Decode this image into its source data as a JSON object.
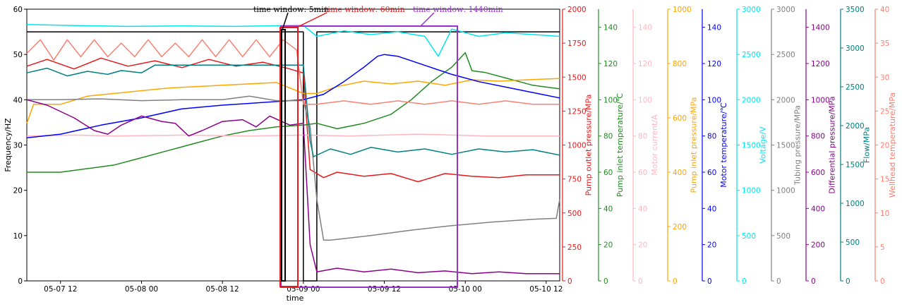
{
  "chart_data": {
    "type": "line",
    "xlabel": "time",
    "x_ticks": [
      "05-07 12",
      "05-08 00",
      "05-08 12",
      "05-09 00",
      "05-09 12",
      "05-10 00",
      "05-10 12"
    ],
    "x_range": [
      "05-07 07:00",
      "05-10 14:00"
    ],
    "frequency_axis": {
      "label": "Frequency/HZ",
      "range": [
        0,
        60
      ],
      "ticks": [
        0,
        10,
        20,
        30,
        40,
        50,
        60
      ]
    },
    "right_axes": [
      {
        "key": "pump_outlet",
        "label": "Pump outlet pressure/MPa",
        "color": "#e41a1c",
        "range": [
          0,
          2000
        ],
        "ticks": [
          0,
          250,
          500,
          750,
          1000,
          1250,
          1500,
          1750,
          2000
        ]
      },
      {
        "key": "pump_inlet_temp",
        "label": "Pump inlet temperature/℃",
        "color": "#228b22",
        "range": [
          0,
          150
        ],
        "ticks": [
          0,
          20,
          40,
          60,
          80,
          100,
          120,
          140
        ]
      },
      {
        "key": "motor_current",
        "label": "Motor current/A",
        "color": "#ffb6c1",
        "range": [
          0,
          150
        ],
        "ticks": [
          0,
          20,
          40,
          60,
          80,
          100,
          120,
          140
        ]
      },
      {
        "key": "pump_inlet_pressure",
        "label": "Pump inlet pressure/MPa",
        "color": "#ffa500",
        "range": [
          0,
          1000
        ],
        "ticks": [
          0,
          200,
          400,
          600,
          800,
          1000
        ]
      },
      {
        "key": "motor_temp",
        "label": "Motor temperature/℃",
        "color": "#0000ff",
        "range": [
          0,
          150
        ],
        "ticks": [
          0,
          20,
          40,
          60,
          80,
          100,
          120,
          140
        ]
      },
      {
        "key": "voltage",
        "label": "Voltage/V",
        "color": "#00e5ee",
        "range": [
          0,
          3000
        ],
        "ticks": [
          0,
          500,
          1000,
          1500,
          2000,
          2500,
          3000
        ]
      },
      {
        "key": "tubing_pressure",
        "label": "Tubing pressure/MPa",
        "color": "#808080",
        "range": [
          0,
          3000
        ],
        "ticks": [
          0,
          500,
          1000,
          1500,
          2000,
          2500,
          3000
        ]
      },
      {
        "key": "diff_pressure",
        "label": "Differential pressure/MPa",
        "color": "#8b008b",
        "range": [
          0,
          1500
        ],
        "ticks": [
          0,
          200,
          400,
          600,
          800,
          1000,
          1200,
          1400
        ]
      },
      {
        "key": "flow",
        "label": "Flow/MPa",
        "color": "#008080",
        "range": [
          0,
          3500
        ],
        "ticks": [
          0,
          500,
          1000,
          1500,
          2000,
          2500,
          3000,
          3500
        ]
      },
      {
        "key": "wellhead_temp",
        "label": "Wellhead temperature/MPa",
        "color": "#fa8072",
        "range": [
          0,
          40
        ],
        "ticks": [
          0,
          5,
          10,
          15,
          20,
          25,
          30,
          35,
          40
        ]
      }
    ],
    "windows": [
      {
        "label": "time window: 5min",
        "color": "#000000"
      },
      {
        "label": "time window: 60min",
        "color": "#e41a1c"
      },
      {
        "label": "time window: 1440min",
        "color": "#9932cc"
      }
    ],
    "series": [
      {
        "key": "frequency",
        "color": "#000000",
        "points": [
          [
            7,
            55
          ],
          [
            48,
            55
          ],
          [
            48,
            0
          ],
          [
            50,
            0
          ],
          [
            50,
            55
          ],
          [
            86,
            55
          ]
        ]
      },
      {
        "key": "pump_outlet",
        "color": "#e41a1c",
        "points": [
          [
            7,
            1580
          ],
          [
            10,
            1630
          ],
          [
            14,
            1560
          ],
          [
            18,
            1640
          ],
          [
            22,
            1580
          ],
          [
            26,
            1620
          ],
          [
            30,
            1570
          ],
          [
            34,
            1630
          ],
          [
            38,
            1580
          ],
          [
            42,
            1610
          ],
          [
            46,
            1560
          ],
          [
            48,
            1530
          ],
          [
            49,
            820
          ],
          [
            51,
            760
          ],
          [
            53,
            800
          ],
          [
            57,
            770
          ],
          [
            61,
            790
          ],
          [
            65,
            730
          ],
          [
            69,
            790
          ],
          [
            73,
            770
          ],
          [
            77,
            760
          ],
          [
            81,
            780
          ],
          [
            86,
            780
          ]
        ]
      },
      {
        "key": "pump_inlet_temp",
        "color": "#228b22",
        "points": [
          [
            7,
            60
          ],
          [
            12,
            60
          ],
          [
            16,
            62
          ],
          [
            20,
            64
          ],
          [
            24,
            68
          ],
          [
            28,
            72
          ],
          [
            32,
            76
          ],
          [
            36,
            80
          ],
          [
            40,
            83
          ],
          [
            44,
            85
          ],
          [
            48,
            86
          ],
          [
            50,
            87
          ],
          [
            53,
            84
          ],
          [
            57,
            87
          ],
          [
            61,
            92
          ],
          [
            64,
            100
          ],
          [
            67,
            110
          ],
          [
            70,
            118
          ],
          [
            72,
            126
          ],
          [
            73,
            116
          ],
          [
            75,
            115
          ],
          [
            78,
            112
          ],
          [
            82,
            108
          ],
          [
            86,
            106
          ]
        ]
      },
      {
        "key": "motor_current",
        "color": "#ffb6c1",
        "points": [
          [
            7,
            80
          ],
          [
            14,
            80.5
          ],
          [
            20,
            80
          ],
          [
            30,
            80.5
          ],
          [
            40,
            80
          ],
          [
            48,
            80.5
          ],
          [
            55,
            80
          ],
          [
            65,
            81
          ],
          [
            75,
            80
          ],
          [
            86,
            80
          ]
        ]
      },
      {
        "key": "pump_inlet_pressure",
        "color": "#ffa500",
        "points": [
          [
            7,
            580
          ],
          [
            8,
            650
          ],
          [
            12,
            650
          ],
          [
            16,
            680
          ],
          [
            20,
            690
          ],
          [
            24,
            700
          ],
          [
            28,
            710
          ],
          [
            32,
            715
          ],
          [
            36,
            720
          ],
          [
            40,
            725
          ],
          [
            44,
            730
          ],
          [
            47,
            700
          ],
          [
            48,
            690
          ],
          [
            50,
            690
          ],
          [
            53,
            715
          ],
          [
            57,
            735
          ],
          [
            61,
            725
          ],
          [
            65,
            735
          ],
          [
            69,
            720
          ],
          [
            73,
            740
          ],
          [
            77,
            735
          ],
          [
            81,
            740
          ],
          [
            86,
            745
          ]
        ]
      },
      {
        "key": "motor_temp",
        "color": "#0000ff",
        "points": [
          [
            7,
            79
          ],
          [
            12,
            81
          ],
          [
            18,
            86
          ],
          [
            24,
            90
          ],
          [
            30,
            95
          ],
          [
            36,
            97
          ],
          [
            40,
            98
          ],
          [
            44,
            99
          ],
          [
            48,
            100
          ],
          [
            51,
            103
          ],
          [
            54,
            110
          ],
          [
            57,
            118
          ],
          [
            59,
            124
          ],
          [
            60,
            125
          ],
          [
            62,
            124
          ],
          [
            66,
            119
          ],
          [
            70,
            114
          ],
          [
            74,
            110
          ],
          [
            78,
            107
          ],
          [
            82,
            104
          ],
          [
            86,
            101
          ]
        ]
      },
      {
        "key": "voltage",
        "color": "#00e5ee",
        "points": [
          [
            7,
            2830
          ],
          [
            14,
            2820
          ],
          [
            22,
            2810
          ],
          [
            30,
            2815
          ],
          [
            38,
            2810
          ],
          [
            46,
            2820
          ],
          [
            48,
            2820
          ],
          [
            50,
            2700
          ],
          [
            54,
            2760
          ],
          [
            58,
            2720
          ],
          [
            62,
            2750
          ],
          [
            66,
            2700
          ],
          [
            68,
            2480
          ],
          [
            70,
            2780
          ],
          [
            74,
            2700
          ],
          [
            78,
            2740
          ],
          [
            82,
            2720
          ],
          [
            86,
            2700
          ]
        ]
      },
      {
        "key": "tubing_pressure",
        "color": "#808080",
        "points": [
          [
            7,
            2000
          ],
          [
            12,
            2000
          ],
          [
            18,
            2010
          ],
          [
            24,
            1990
          ],
          [
            30,
            2000
          ],
          [
            36,
            2000
          ],
          [
            40,
            2040
          ],
          [
            44,
            1990
          ],
          [
            48,
            1990
          ],
          [
            49,
            1700
          ],
          [
            50,
            900
          ],
          [
            51,
            450
          ],
          [
            52,
            450
          ],
          [
            58,
            500
          ],
          [
            64,
            560
          ],
          [
            70,
            610
          ],
          [
            76,
            650
          ],
          [
            82,
            680
          ],
          [
            85.5,
            690
          ],
          [
            86,
            900
          ]
        ]
      },
      {
        "key": "diff_pressure",
        "color": "#8b008b",
        "points": [
          [
            7,
            1000
          ],
          [
            10,
            970
          ],
          [
            14,
            900
          ],
          [
            17,
            830
          ],
          [
            19,
            810
          ],
          [
            21,
            860
          ],
          [
            24,
            910
          ],
          [
            27,
            880
          ],
          [
            29,
            870
          ],
          [
            31,
            800
          ],
          [
            33,
            830
          ],
          [
            36,
            880
          ],
          [
            39,
            890
          ],
          [
            41,
            850
          ],
          [
            43,
            910
          ],
          [
            46,
            860
          ],
          [
            48,
            870
          ],
          [
            49,
            200
          ],
          [
            50,
            50
          ],
          [
            53,
            70
          ],
          [
            57,
            50
          ],
          [
            61,
            65
          ],
          [
            65,
            45
          ],
          [
            69,
            55
          ],
          [
            73,
            40
          ],
          [
            77,
            50
          ],
          [
            81,
            40
          ],
          [
            86,
            40
          ]
        ]
      },
      {
        "key": "flow",
        "color": "#008080",
        "points": [
          [
            7,
            2680
          ],
          [
            10,
            2740
          ],
          [
            13,
            2640
          ],
          [
            16,
            2700
          ],
          [
            19,
            2660
          ],
          [
            21,
            2710
          ],
          [
            24,
            2680
          ],
          [
            26,
            2780
          ],
          [
            30,
            2780
          ],
          [
            36,
            2780
          ],
          [
            44,
            2780
          ],
          [
            48,
            2780
          ],
          [
            49,
            1800
          ],
          [
            49.5,
            1600
          ],
          [
            52,
            1700
          ],
          [
            55,
            1630
          ],
          [
            58,
            1720
          ],
          [
            62,
            1660
          ],
          [
            66,
            1700
          ],
          [
            70,
            1630
          ],
          [
            74,
            1700
          ],
          [
            78,
            1660
          ],
          [
            82,
            1690
          ],
          [
            86,
            1620
          ]
        ]
      },
      {
        "key": "wellhead_temp",
        "color": "#fa8072",
        "points": [
          [
            7,
            33.5
          ],
          [
            9,
            35.5
          ],
          [
            11,
            32.5
          ],
          [
            13,
            35.5
          ],
          [
            15,
            33
          ],
          [
            17,
            35.5
          ],
          [
            19,
            33
          ],
          [
            21,
            35
          ],
          [
            23,
            33
          ],
          [
            25,
            35.5
          ],
          [
            27,
            33
          ],
          [
            29,
            35
          ],
          [
            31,
            33
          ],
          [
            33,
            35.5
          ],
          [
            35,
            33
          ],
          [
            37,
            35.5
          ],
          [
            39,
            33
          ],
          [
            41,
            35.5
          ],
          [
            43,
            33
          ],
          [
            45,
            35.5
          ],
          [
            47,
            34
          ],
          [
            48,
            26
          ],
          [
            50,
            26
          ],
          [
            54,
            26.5
          ],
          [
            58,
            26
          ],
          [
            62,
            26.5
          ],
          [
            66,
            26
          ],
          [
            70,
            26.5
          ],
          [
            74,
            26
          ],
          [
            78,
            26.5
          ],
          [
            82,
            26
          ],
          [
            86,
            26
          ]
        ]
      }
    ]
  }
}
